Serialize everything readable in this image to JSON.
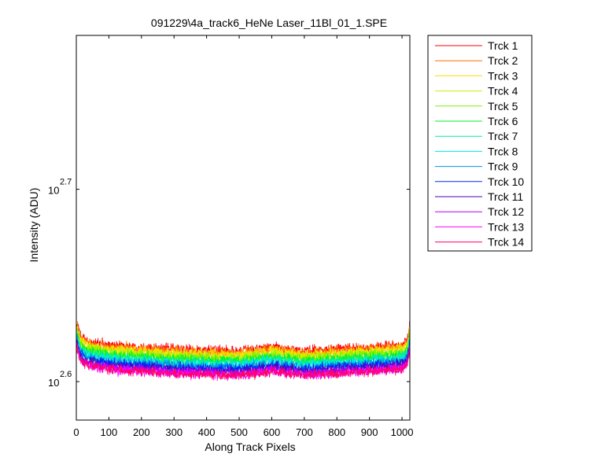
{
  "chart_data": {
    "type": "line",
    "title": "091229\\4a_track6_HeNe Laser_11Bl_01_1.SPE",
    "xlabel": "Along Track Pixels",
    "ylabel": "Intensity (ADU)",
    "xlim": [
      0,
      1024
    ],
    "ylim_log10": [
      2.58,
      2.78
    ],
    "y_scale": "log",
    "grid": false,
    "legend_position": "outside-top-right",
    "x_ticks": [
      {
        "value": 0,
        "label": "0"
      },
      {
        "value": 100,
        "label": "100"
      },
      {
        "value": 200,
        "label": "200"
      },
      {
        "value": 300,
        "label": "300"
      },
      {
        "value": 400,
        "label": "400"
      },
      {
        "value": 500,
        "label": "500"
      },
      {
        "value": 600,
        "label": "600"
      },
      {
        "value": 700,
        "label": "700"
      },
      {
        "value": 800,
        "label": "800"
      },
      {
        "value": 900,
        "label": "900"
      },
      {
        "value": 1000,
        "label": "1000"
      }
    ],
    "y_ticks": [
      {
        "exponent": 2.6,
        "base": "10",
        "exp_label": "2.6"
      },
      {
        "exponent": 2.7,
        "base": "10",
        "exp_label": "2.7"
      }
    ],
    "series_profile_x": [
      0,
      3,
      10,
      30,
      100,
      300,
      500,
      600,
      700,
      800,
      900,
      1000,
      1015,
      1020,
      1024
    ],
    "series": [
      {
        "name": "Trck 1",
        "color": "#ff0000",
        "noise": 0.003,
        "profile": [
          426,
          427,
          421,
          418,
          416,
          414,
          413,
          415,
          413,
          414,
          415,
          416,
          418,
          422,
          427
        ]
      },
      {
        "name": "Trck 2",
        "color": "#ff6e00",
        "noise": 0.003,
        "profile": [
          425,
          426,
          420,
          417,
          415,
          413,
          412,
          414,
          412,
          413,
          414,
          415,
          417,
          421,
          426
        ]
      },
      {
        "name": "Trck 3",
        "color": "#ffdc00",
        "noise": 0.003,
        "profile": [
          424,
          425,
          419,
          416,
          414,
          412,
          411,
          413,
          411,
          412,
          413,
          414,
          416,
          420,
          425
        ]
      },
      {
        "name": "Trck 4",
        "color": "#c8f000",
        "noise": 0.003,
        "profile": [
          423,
          424,
          418,
          415,
          413,
          411,
          410,
          412,
          410,
          411,
          412,
          413,
          415,
          419,
          424
        ]
      },
      {
        "name": "Trck 5",
        "color": "#78f000",
        "noise": 0.003,
        "profile": [
          422,
          423,
          417,
          414,
          412,
          410,
          409,
          411,
          409,
          410,
          411,
          412,
          414,
          418,
          423
        ]
      },
      {
        "name": "Trck 6",
        "color": "#00f028",
        "noise": 0.003,
        "profile": [
          421,
          422,
          416,
          413,
          411,
          409,
          408,
          410,
          408,
          409,
          410,
          411,
          413,
          417,
          422
        ]
      },
      {
        "name": "Trck 7",
        "color": "#00f096",
        "noise": 0.003,
        "profile": [
          420,
          421,
          415,
          412,
          410,
          408,
          407,
          409,
          407,
          408,
          409,
          410,
          412,
          416,
          421
        ]
      },
      {
        "name": "Trck 8",
        "color": "#00e6e6",
        "noise": 0.003,
        "profile": [
          419,
          420,
          414,
          411,
          409,
          407,
          406,
          408,
          406,
          407,
          408,
          409,
          411,
          415,
          420
        ]
      },
      {
        "name": "Trck 9",
        "color": "#0096dc",
        "noise": 0.003,
        "profile": [
          418,
          419,
          413,
          410,
          408,
          406,
          405,
          407,
          405,
          406,
          407,
          408,
          410,
          414,
          419
        ]
      },
      {
        "name": "Trck 10",
        "color": "#0028ff",
        "noise": 0.003,
        "profile": [
          417,
          418,
          412,
          409,
          407,
          405,
          404,
          406,
          404,
          405,
          406,
          407,
          409,
          413,
          418
        ]
      },
      {
        "name": "Trck 11",
        "color": "#5000b4",
        "noise": 0.003,
        "profile": [
          416,
          417,
          411,
          408,
          406,
          404,
          403,
          405,
          403,
          404,
          405,
          406,
          408,
          412,
          417
        ]
      },
      {
        "name": "Trck 12",
        "color": "#b400ff",
        "noise": 0.003,
        "profile": [
          415,
          416,
          410,
          407,
          405,
          403,
          402,
          404,
          402,
          403,
          404,
          405,
          407,
          411,
          416
        ]
      },
      {
        "name": "Trck 13",
        "color": "#ff00ff",
        "noise": 0.003,
        "profile": [
          414,
          415,
          409,
          406,
          404,
          402,
          401,
          403,
          401,
          402,
          403,
          404,
          406,
          410,
          415
        ]
      },
      {
        "name": "Trck 14",
        "color": "#ff0064",
        "noise": 0.003,
        "profile": [
          414,
          415,
          409,
          406,
          404,
          402,
          401,
          403,
          401,
          402,
          403,
          404,
          406,
          410,
          415
        ]
      }
    ]
  }
}
